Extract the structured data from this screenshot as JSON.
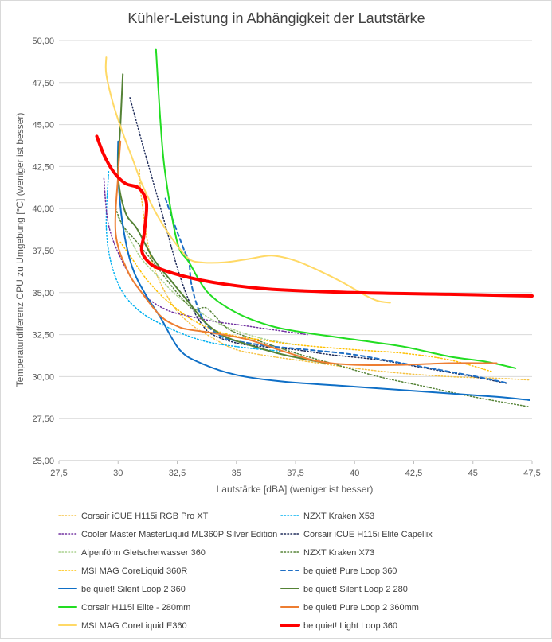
{
  "chart_data": {
    "type": "line",
    "title": "Kühler-Leistung in Abhängigkeit der Lautstärke",
    "xlabel": "Lautstärke [dBA] (weniger ist besser)",
    "ylabel": "Temperaturdifferenz CPU zu Umgebung [°C] (weniger ist besser)",
    "xlim": [
      27.5,
      47.5
    ],
    "ylim": [
      25,
      50
    ],
    "xticks": [
      "27,5",
      "30",
      "32,5",
      "35",
      "37,5",
      "40",
      "42,5",
      "45",
      "47,5"
    ],
    "yticks": [
      "25,00",
      "27,50",
      "30,00",
      "32,50",
      "35,00",
      "37,50",
      "40,00",
      "42,50",
      "45,00",
      "47,50",
      "50,00"
    ],
    "grid": "horizontal",
    "legend_position": "bottom",
    "series": [
      {
        "name": "Corsair iCUE H115i RGB Pro XT",
        "color": "#f5c242",
        "dash": "dot",
        "width": 1.5,
        "points": [
          [
            30.9,
            42.3
          ],
          [
            31.0,
            40.5
          ],
          [
            31.4,
            37.0
          ],
          [
            32.2,
            34.5
          ],
          [
            33.0,
            33.2
          ],
          [
            34.0,
            32.3
          ],
          [
            35.0,
            31.6
          ],
          [
            36.5,
            31.2
          ],
          [
            38.0,
            30.9
          ],
          [
            40.0,
            30.5
          ],
          [
            42.0,
            30.2
          ],
          [
            44.0,
            30.0
          ],
          [
            46.0,
            29.9
          ],
          [
            47.4,
            29.8
          ]
        ]
      },
      {
        "name": "NZXT Kraken X53",
        "color": "#00b0f0",
        "dash": "dot",
        "width": 1.5,
        "points": [
          [
            29.6,
            42.2
          ],
          [
            29.5,
            39.0
          ],
          [
            29.7,
            36.8
          ],
          [
            30.2,
            35.0
          ],
          [
            31.0,
            33.8
          ],
          [
            32.0,
            33.0
          ],
          [
            33.0,
            32.4
          ],
          [
            34.0,
            32.0
          ],
          [
            35.5,
            31.7
          ],
          [
            37.0,
            31.5
          ]
        ]
      },
      {
        "name": "Cooler Master MasterLiquid ML360P Silver Edition",
        "color": "#7030a0",
        "dash": "dot",
        "width": 1.5,
        "points": [
          [
            29.4,
            41.8
          ],
          [
            29.6,
            39.0
          ],
          [
            30.2,
            36.8
          ],
          [
            31.0,
            35.0
          ],
          [
            32.0,
            34.0
          ],
          [
            33.0,
            33.6
          ],
          [
            34.0,
            33.3
          ],
          [
            35.0,
            33.1
          ],
          [
            36.0,
            32.9
          ],
          [
            37.0,
            32.7
          ],
          [
            38.0,
            32.5
          ]
        ]
      },
      {
        "name": "Corsair iCUE H115i Elite Capellix",
        "color": "#1f2c5a",
        "dash": "dot",
        "width": 1.5,
        "points": [
          [
            30.5,
            46.6
          ],
          [
            31.0,
            44.0
          ],
          [
            31.5,
            41.5
          ],
          [
            32.0,
            39.0
          ],
          [
            32.5,
            36.5
          ],
          [
            33.0,
            34.5
          ],
          [
            33.5,
            33.2
          ],
          [
            34.0,
            32.5
          ],
          [
            35.0,
            32.0
          ],
          [
            36.0,
            31.8
          ],
          [
            37.5,
            31.6
          ],
          [
            39.0,
            31.3
          ],
          [
            41.0,
            31.0
          ],
          [
            43.0,
            30.5
          ],
          [
            45.0,
            30.0
          ],
          [
            46.4,
            29.6
          ]
        ]
      },
      {
        "name": "Alpenföhn Gletscherwasser 360",
        "color": "#a9d18e",
        "dash": "dot",
        "width": 1.5,
        "points": [
          [
            30.0,
            39.5
          ],
          [
            30.5,
            38.2
          ],
          [
            31.0,
            37.0
          ],
          [
            31.8,
            35.8
          ],
          [
            32.5,
            34.8
          ],
          [
            33.5,
            33.8
          ],
          [
            34.5,
            33.0
          ],
          [
            36.0,
            32.3
          ],
          [
            37.5,
            31.9
          ]
        ]
      },
      {
        "name": "NZXT Kraken X73",
        "color": "#548235",
        "dash": "dot",
        "width": 1.5,
        "points": [
          [
            29.9,
            40.0
          ],
          [
            30.2,
            39.0
          ],
          [
            30.8,
            38.0
          ],
          [
            31.5,
            36.8
          ],
          [
            32.2,
            35.5
          ],
          [
            32.8,
            34.5
          ],
          [
            33.2,
            34.0
          ],
          [
            33.7,
            34.1
          ],
          [
            34.1,
            33.6
          ],
          [
            34.5,
            33.0
          ],
          [
            35.0,
            32.6
          ],
          [
            36.0,
            32.1
          ],
          [
            37.5,
            31.4
          ],
          [
            39.0,
            30.8
          ],
          [
            41.0,
            30.0
          ],
          [
            43.0,
            29.4
          ],
          [
            45.0,
            28.8
          ],
          [
            47.4,
            28.2
          ]
        ]
      },
      {
        "name": "MSI MAG CoreLiquid 360R",
        "color": "#ffc000",
        "dash": "dot",
        "width": 1.5,
        "points": [
          [
            30.1,
            38.0
          ],
          [
            30.6,
            37.0
          ],
          [
            31.2,
            35.8
          ],
          [
            32.0,
            34.6
          ],
          [
            33.0,
            33.5
          ],
          [
            34.0,
            32.8
          ],
          [
            35.0,
            32.4
          ],
          [
            36.0,
            32.2
          ],
          [
            37.5,
            31.9
          ],
          [
            40.0,
            31.6
          ],
          [
            42.0,
            31.4
          ],
          [
            44.0,
            31.0
          ],
          [
            45.8,
            30.3
          ]
        ]
      },
      {
        "name": "be quiet! Pure Loop 360",
        "color": "#1f6fc5",
        "dash": "dash",
        "width": 2,
        "points": [
          [
            32.0,
            40.6
          ],
          [
            32.4,
            39.0
          ],
          [
            32.8,
            37.5
          ],
          [
            33.0,
            36.8
          ],
          [
            33.1,
            35.5
          ],
          [
            33.4,
            34.0
          ],
          [
            33.8,
            33.0
          ],
          [
            34.5,
            32.3
          ],
          [
            35.5,
            32.0
          ],
          [
            36.5,
            31.8
          ],
          [
            38.0,
            31.6
          ],
          [
            40.0,
            31.3
          ],
          [
            42.0,
            30.8
          ],
          [
            44.0,
            30.3
          ],
          [
            45.5,
            29.9
          ],
          [
            46.5,
            29.6
          ]
        ]
      },
      {
        "name": "be quiet! Silent Loop 2 360",
        "color": "#0f6fc6",
        "dash": "solid",
        "width": 2,
        "points": [
          [
            30.0,
            44.0
          ],
          [
            30.0,
            42.0
          ],
          [
            30.2,
            39.0
          ],
          [
            30.6,
            36.5
          ],
          [
            31.2,
            34.8
          ],
          [
            31.8,
            33.5
          ],
          [
            32.6,
            31.6
          ],
          [
            33.5,
            30.8
          ],
          [
            35.0,
            30.1
          ],
          [
            37.0,
            29.7
          ],
          [
            40.0,
            29.4
          ],
          [
            43.0,
            29.1
          ],
          [
            46.0,
            28.8
          ],
          [
            47.4,
            28.6
          ]
        ]
      },
      {
        "name": "be quiet! Silent Loop 2 280",
        "color": "#548235",
        "dash": "solid",
        "width": 2,
        "points": [
          [
            30.2,
            48.0
          ],
          [
            30.1,
            45.0
          ],
          [
            30.0,
            42.0
          ],
          [
            30.3,
            39.8
          ],
          [
            30.8,
            38.8
          ],
          [
            31.5,
            37.0
          ],
          [
            32.3,
            35.6
          ],
          [
            33.0,
            34.4
          ],
          [
            33.7,
            33.2
          ],
          [
            34.5,
            32.4
          ],
          [
            35.5,
            31.9
          ],
          [
            37.0,
            31.3
          ],
          [
            38.8,
            30.8
          ]
        ]
      },
      {
        "name": "Corsair H115i Elite - 280mm",
        "color": "#22dd22",
        "dash": "solid",
        "width": 2,
        "points": [
          [
            31.6,
            49.5
          ],
          [
            31.8,
            45.0
          ],
          [
            32.0,
            42.0
          ],
          [
            32.5,
            38.0
          ],
          [
            33.0,
            36.8
          ],
          [
            33.8,
            35.0
          ],
          [
            35.0,
            33.8
          ],
          [
            36.5,
            33.0
          ],
          [
            38.0,
            32.6
          ],
          [
            40.0,
            32.2
          ],
          [
            42.0,
            31.8
          ],
          [
            44.0,
            31.2
          ],
          [
            45.5,
            30.9
          ],
          [
            46.8,
            30.5
          ]
        ]
      },
      {
        "name": "be quiet! Pure Loop 2 360mm",
        "color": "#ed7d31",
        "dash": "solid",
        "width": 2,
        "points": [
          [
            30.1,
            44.0
          ],
          [
            30.0,
            42.0
          ],
          [
            29.9,
            38.5
          ],
          [
            30.4,
            36.3
          ],
          [
            31.0,
            35.0
          ],
          [
            31.8,
            33.6
          ],
          [
            32.5,
            33.0
          ],
          [
            33.0,
            32.8
          ],
          [
            34.0,
            32.6
          ],
          [
            35.5,
            32.2
          ],
          [
            37.0,
            31.5
          ],
          [
            38.5,
            30.9
          ],
          [
            40.0,
            30.7
          ],
          [
            42.0,
            30.7
          ],
          [
            44.0,
            30.8
          ],
          [
            46.0,
            30.8
          ]
        ]
      },
      {
        "name": "MSI MAG CoreLiquid E360",
        "color": "#ffd966",
        "dash": "solid",
        "width": 2,
        "points": [
          [
            29.5,
            49.0
          ],
          [
            29.5,
            48.0
          ],
          [
            29.8,
            46.2
          ],
          [
            30.2,
            44.5
          ],
          [
            30.6,
            43.0
          ],
          [
            31.0,
            41.5
          ],
          [
            31.5,
            40.0
          ],
          [
            32.0,
            38.8
          ],
          [
            32.5,
            37.8
          ],
          [
            33.0,
            37.0
          ],
          [
            33.5,
            36.8
          ],
          [
            34.5,
            36.8
          ],
          [
            35.5,
            37.0
          ],
          [
            36.5,
            37.2
          ],
          [
            37.5,
            36.9
          ],
          [
            38.5,
            36.3
          ],
          [
            39.5,
            35.6
          ],
          [
            40.5,
            34.8
          ],
          [
            41.0,
            34.5
          ],
          [
            41.5,
            34.4
          ]
        ]
      },
      {
        "name": "be quiet! Light Loop 360",
        "color": "#ff0000",
        "dash": "solid",
        "width": 4,
        "points": [
          [
            29.1,
            44.3
          ],
          [
            29.4,
            43.2
          ],
          [
            29.8,
            42.2
          ],
          [
            30.3,
            41.5
          ],
          [
            30.9,
            41.2
          ],
          [
            31.2,
            40.3
          ],
          [
            31.1,
            38.5
          ],
          [
            31.0,
            37.5
          ],
          [
            31.3,
            36.8
          ],
          [
            31.8,
            36.4
          ],
          [
            33.0,
            35.9
          ],
          [
            34.5,
            35.5
          ],
          [
            36.5,
            35.2
          ],
          [
            40.0,
            35.0
          ],
          [
            44.0,
            34.9
          ],
          [
            47.5,
            34.8
          ]
        ]
      }
    ]
  }
}
